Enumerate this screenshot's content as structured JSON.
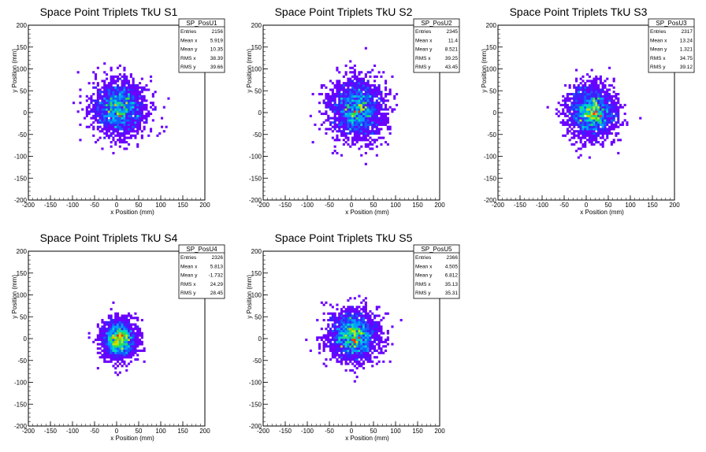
{
  "chart_data": [
    {
      "type": "heatmap",
      "title": "Space Point Triplets TkU S1",
      "xlabel": "x Position (mm)",
      "ylabel": "y Position (mm)",
      "xlim": [
        -200,
        200
      ],
      "ylim": [
        -200,
        200
      ],
      "xticks": [
        "-200",
        "-150",
        "-100",
        "-50",
        "0",
        "50",
        "100",
        "150",
        "200"
      ],
      "yticks": [
        "-200",
        "-150",
        "-100",
        "-50",
        "0",
        "50",
        "100",
        "150",
        "200"
      ],
      "grid": false,
      "stats": {
        "name": "SP_PosU1",
        "rows": [
          {
            "label": "Entries",
            "value": "2156"
          },
          {
            "label": "Mean x",
            "value": "5.919"
          },
          {
            "label": "Mean y",
            "value": "10.35"
          },
          {
            "label": "RMS x",
            "value": "38.39"
          },
          {
            "label": "RMS y",
            "value": "39.66"
          }
        ]
      },
      "entries": 2156,
      "mean_x": 5.919,
      "mean_y": 10.35,
      "rms_x": 38.39,
      "rms_y": 39.66
    },
    {
      "type": "heatmap",
      "title": "Space Point Triplets TkU S2",
      "xlabel": "x Position (mm)",
      "ylabel": "y Position (mm)",
      "xlim": [
        -200,
        200
      ],
      "ylim": [
        -200,
        200
      ],
      "xticks": [
        "-200",
        "-150",
        "-100",
        "-50",
        "0",
        "50",
        "100",
        "150",
        "200"
      ],
      "yticks": [
        "-200",
        "-150",
        "-100",
        "-50",
        "0",
        "50",
        "100",
        "150",
        "200"
      ],
      "grid": false,
      "stats": {
        "name": "SP_PosU2",
        "rows": [
          {
            "label": "Entries",
            "value": "2345"
          },
          {
            "label": "Mean x",
            "value": "11.4"
          },
          {
            "label": "Mean y",
            "value": "8.521"
          },
          {
            "label": "RMS x",
            "value": "39.25"
          },
          {
            "label": "RMS y",
            "value": "43.45"
          }
        ]
      },
      "entries": 2345,
      "mean_x": 11.4,
      "mean_y": 8.521,
      "rms_x": 39.25,
      "rms_y": 43.45
    },
    {
      "type": "heatmap",
      "title": "Space Point Triplets TkU S3",
      "xlabel": "x Position (mm)",
      "ylabel": "y Position (mm)",
      "xlim": [
        -200,
        200
      ],
      "ylim": [
        -200,
        200
      ],
      "xticks": [
        "-200",
        "-150",
        "-100",
        "-50",
        "0",
        "50",
        "100",
        "150",
        "200"
      ],
      "yticks": [
        "-200",
        "-150",
        "-100",
        "-50",
        "0",
        "50",
        "100",
        "150",
        "200"
      ],
      "grid": false,
      "stats": {
        "name": "SP_PosU3",
        "rows": [
          {
            "label": "Entries",
            "value": "2317"
          },
          {
            "label": "Mean x",
            "value": "13.24"
          },
          {
            "label": "Mean y",
            "value": "1.321"
          },
          {
            "label": "RMS x",
            "value": "34.75"
          },
          {
            "label": "RMS y",
            "value": "39.12"
          }
        ]
      },
      "entries": 2317,
      "mean_x": 13.24,
      "mean_y": 1.321,
      "rms_x": 34.75,
      "rms_y": 39.12
    },
    {
      "type": "heatmap",
      "title": "Space Point Triplets TkU S4",
      "xlabel": "x Position (mm)",
      "ylabel": "y Position (mm)",
      "xlim": [
        -200,
        200
      ],
      "ylim": [
        -200,
        200
      ],
      "xticks": [
        "-200",
        "-150",
        "-100",
        "-50",
        "0",
        "50",
        "100",
        "150",
        "200"
      ],
      "yticks": [
        "-200",
        "-150",
        "-100",
        "-50",
        "0",
        "50",
        "100",
        "150",
        "200"
      ],
      "grid": false,
      "stats": {
        "name": "SP_PosU4",
        "rows": [
          {
            "label": "Entries",
            "value": "2326"
          },
          {
            "label": "Mean x",
            "value": "5.813"
          },
          {
            "label": "Mean y",
            "value": "-1.732"
          },
          {
            "label": "RMS x",
            "value": "24.29"
          },
          {
            "label": "RMS y",
            "value": "28.45"
          }
        ]
      },
      "entries": 2326,
      "mean_x": 5.813,
      "mean_y": -1.732,
      "rms_x": 24.29,
      "rms_y": 28.45
    },
    {
      "type": "heatmap",
      "title": "Space Point Triplets TkU S5",
      "xlabel": "x Position (mm)",
      "ylabel": "y Position (mm)",
      "xlim": [
        -200,
        200
      ],
      "ylim": [
        -200,
        200
      ],
      "xticks": [
        "-200",
        "-150",
        "-100",
        "-50",
        "0",
        "50",
        "100",
        "150",
        "200"
      ],
      "yticks": [
        "-200",
        "-150",
        "-100",
        "-50",
        "0",
        "50",
        "100",
        "150",
        "200"
      ],
      "grid": false,
      "stats": {
        "name": "SP_PosU5",
        "rows": [
          {
            "label": "Entries",
            "value": "2366"
          },
          {
            "label": "Mean x",
            "value": "4.505"
          },
          {
            "label": "Mean y",
            "value": "6.812"
          },
          {
            "label": "RMS x",
            "value": "35.13"
          },
          {
            "label": "RMS y",
            "value": "35.31"
          }
        ]
      },
      "entries": 2366,
      "mean_x": 4.505,
      "mean_y": 6.812,
      "rms_x": 35.13,
      "rms_y": 35.31
    }
  ],
  "colors": {
    "palette": [
      "#6a00ff",
      "#3a20ff",
      "#1060ff",
      "#00a0ff",
      "#00d8c0",
      "#30e040",
      "#c0e800",
      "#ffb000",
      "#ff3000"
    ],
    "axis": "#000000",
    "background": "#ffffff"
  }
}
